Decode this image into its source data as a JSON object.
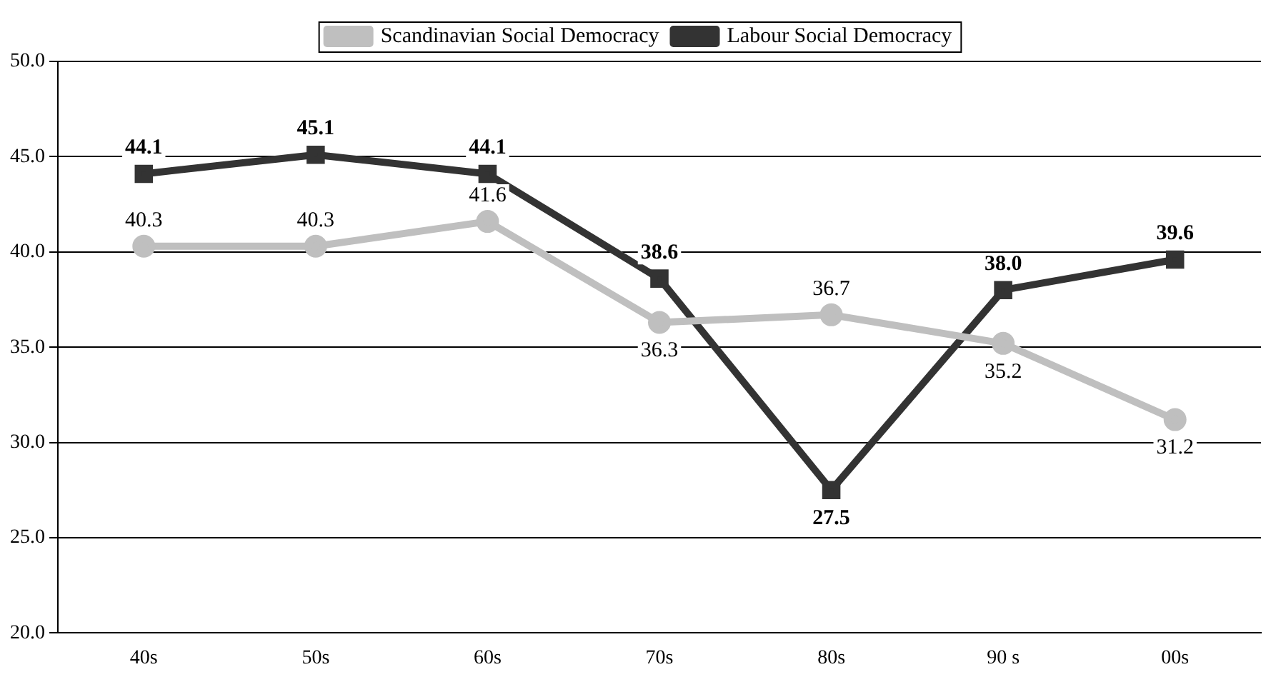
{
  "chart_data": {
    "type": "line",
    "categories": [
      "40s",
      "50s",
      "60s",
      "70s",
      "80s",
      "90 s",
      "00s"
    ],
    "series": [
      {
        "name": "Scandinavian Social Democracy",
        "color": "#bfbfbf",
        "marker": "circle",
        "values": [
          40.3,
          40.3,
          41.6,
          36.3,
          36.7,
          35.2,
          31.2
        ],
        "value_labels": [
          "40.3",
          "40.3",
          "41.6",
          "36.3",
          "36.7",
          "35.2",
          "31.2"
        ]
      },
      {
        "name": "Labour Social Democracy",
        "color": "#333333",
        "marker": "square",
        "values": [
          44.1,
          45.1,
          44.1,
          38.6,
          27.5,
          38.0,
          39.6
        ],
        "value_labels": [
          "44.1",
          "45.1",
          "44.1",
          "38.6",
          "27.5",
          "38.0",
          "39.6"
        ]
      }
    ],
    "ylim": [
      20,
      50
    ],
    "yticks": [
      {
        "value": 20,
        "label": "20.0"
      },
      {
        "value": 25,
        "label": "25.0"
      },
      {
        "value": 30,
        "label": "30.0"
      },
      {
        "value": 35,
        "label": "35.0"
      },
      {
        "value": 40,
        "label": "40.0"
      },
      {
        "value": 45,
        "label": "45.0"
      },
      {
        "value": 50,
        "label": "50.0"
      }
    ],
    "grid": "y",
    "legend": "top",
    "line_style": "solid"
  }
}
